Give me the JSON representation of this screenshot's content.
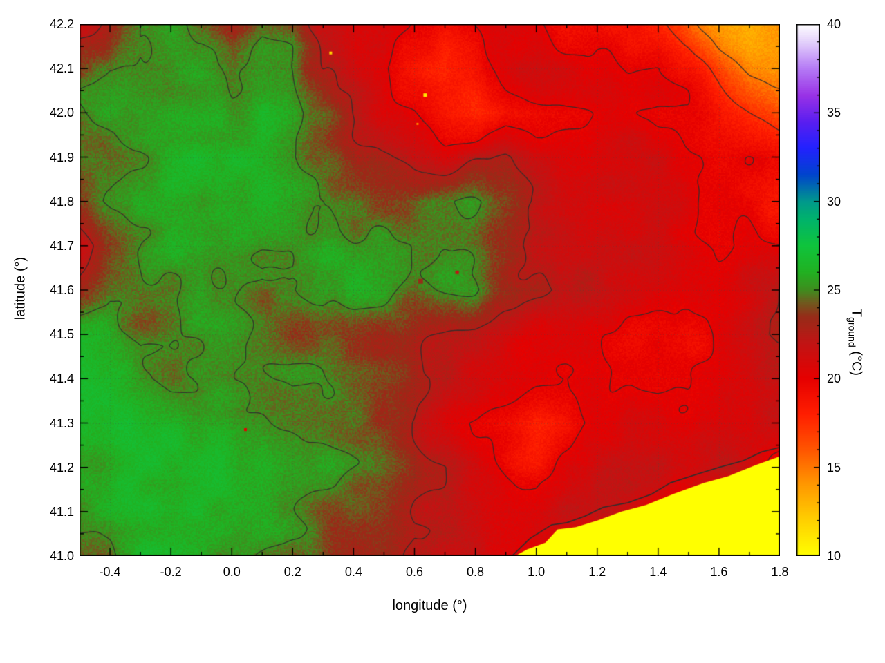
{
  "axes": {
    "xlabel": "longitude (°)",
    "ylabel": "latitude (°)",
    "x_ticks": {
      "values": [
        -0.4,
        -0.2,
        0.0,
        0.2,
        0.4,
        0.6,
        0.8,
        1.0,
        1.2,
        1.4,
        1.6,
        1.8
      ],
      "labels": [
        "-0.4",
        "-0.2",
        "0.0",
        "0.2",
        "0.4",
        "0.6",
        "0.8",
        "1.0",
        "1.2",
        "1.4",
        "1.6",
        "1.8"
      ]
    },
    "y_ticks": {
      "values": [
        41.0,
        41.1,
        41.2,
        41.3,
        41.4,
        41.5,
        41.6,
        41.7,
        41.8,
        41.9,
        42.0,
        42.1,
        42.2
      ],
      "labels": [
        "41.0",
        "41.1",
        "41.2",
        "41.3",
        "41.4",
        "41.5",
        "41.6",
        "41.7",
        "41.8",
        "41.9",
        "42.0",
        "42.1",
        "42.2"
      ]
    }
  },
  "colorbar": {
    "label_prefix": "T",
    "label_sub": "ground",
    "label_suffix": " (°C)",
    "min": 10,
    "max": 40,
    "tick_values": [
      10,
      15,
      20,
      25,
      30,
      35,
      40
    ],
    "tick_labels": [
      "10",
      "15",
      "20",
      "25",
      "30",
      "35",
      "40"
    ]
  },
  "style": {
    "contour_color": "#2e2e2e",
    "grid_color": "rgba(70,70,70,0.35)",
    "sea_color": "#ffff00",
    "frame_color": "#000000",
    "background": "#ffffff"
  },
  "chart_data": {
    "type": "heatmap",
    "field": "ground temperature",
    "xlabel": "longitude (°)",
    "ylabel": "latitude (°)",
    "zlabel": "T_ground (°C)",
    "xlim": [
      -0.5,
      1.8
    ],
    "ylim": [
      41.0,
      42.2
    ],
    "zlim": [
      10,
      40
    ],
    "legend_position": "right colorbar",
    "grid": "dotted at major ticks",
    "lon": [
      -0.5,
      -0.4,
      -0.3,
      -0.2,
      -0.1,
      0.0,
      0.1,
      0.2,
      0.3,
      0.4,
      0.5,
      0.6,
      0.7,
      0.8,
      0.9,
      1.0,
      1.1,
      1.2,
      1.3,
      1.4,
      1.5,
      1.6,
      1.7,
      1.8
    ],
    "lat_north_to_south": [
      42.2,
      42.1,
      42.0,
      41.9,
      41.8,
      41.7,
      41.6,
      41.5,
      41.4,
      41.3,
      41.2,
      41.1,
      41.0
    ],
    "temperature_grid": [
      [
        22.5,
        23.5,
        25,
        25.2,
        24,
        22.5,
        24.5,
        24,
        21,
        20.5,
        21,
        19.5,
        19,
        20,
        21,
        20.2,
        19.5,
        20,
        19,
        18.5,
        16.5,
        14.5,
        13,
        13.5
      ],
      [
        24,
        25,
        25.3,
        25.2,
        25,
        24.2,
        25,
        24.5,
        22,
        21,
        20,
        18.8,
        17.2,
        18.8,
        20,
        21,
        20.5,
        20,
        19.5,
        19.8,
        18.8,
        16.5,
        14.5,
        13.8
      ],
      [
        25,
        26,
        26,
        26,
        25.2,
        25,
        26,
        25.2,
        24,
        22,
        20.5,
        19.5,
        17.8,
        16.8,
        18.5,
        18.8,
        19.5,
        20,
        20,
        19.5,
        19.8,
        18.8,
        17.2,
        15.8
      ],
      [
        25,
        24.6,
        25,
        26,
        26,
        26,
        25.2,
        25,
        24.2,
        23,
        22,
        21,
        20.6,
        21.8,
        22.6,
        21,
        20.6,
        21,
        21,
        21,
        20.6,
        20,
        19.6,
        18.8
      ],
      [
        24,
        25,
        26,
        25.6,
        24.6,
        25.6,
        26,
        26,
        25.6,
        25,
        24.6,
        24.6,
        25,
        25,
        24,
        22.6,
        21.6,
        21,
        21,
        21,
        20.6,
        20,
        19.6,
        19
      ],
      [
        21.8,
        24,
        25,
        26,
        26,
        26,
        25.6,
        25.6,
        26,
        25.6,
        25.6,
        25,
        24.6,
        24,
        23.6,
        22,
        21.6,
        21.6,
        21,
        21,
        20.6,
        20,
        20,
        19.6
      ],
      [
        24,
        25,
        24.6,
        25,
        26,
        25.6,
        24.6,
        25,
        26,
        26,
        25.6,
        24.2,
        24.6,
        25,
        24,
        23,
        22,
        21.6,
        21,
        20.6,
        20.6,
        20.6,
        21,
        22
      ],
      [
        26,
        26,
        25,
        25,
        25,
        25,
        24.6,
        24,
        25,
        24.6,
        24,
        23.6,
        23,
        22.6,
        21.6,
        20.6,
        20,
        19.6,
        19.6,
        20,
        19.6,
        20.6,
        21.6,
        23
      ],
      [
        26,
        26,
        25,
        24.6,
        25,
        25,
        25,
        25.6,
        25,
        24,
        23.6,
        23,
        22.6,
        21.6,
        20.6,
        20,
        19.6,
        20,
        19.6,
        19.6,
        20,
        20.6,
        21,
        21.6
      ],
      [
        26,
        26,
        26,
        26,
        26,
        26,
        25.6,
        25,
        24.6,
        24,
        23,
        22,
        21,
        20,
        19,
        17.6,
        18,
        19.6,
        21,
        21,
        20.6,
        21,
        21,
        21
      ],
      [
        26,
        26,
        26,
        26,
        26,
        26,
        26,
        25.6,
        25,
        24,
        23.6,
        22.6,
        22,
        21,
        20,
        19,
        20,
        21,
        21.6,
        21.6,
        21,
        21.6,
        22,
        20
      ],
      [
        26,
        26,
        25.6,
        26,
        26,
        26,
        25,
        25,
        24,
        23.6,
        23,
        22,
        21.6,
        21,
        21,
        21,
        21.6,
        22,
        21.6,
        20,
        19.5,
        19,
        19,
        19
      ],
      [
        25,
        25,
        26,
        26,
        26,
        25,
        25,
        24,
        24,
        23,
        23,
        22,
        22,
        21.6,
        21,
        20.5,
        20,
        19.5,
        19.5,
        19,
        19,
        19,
        19,
        19
      ]
    ],
    "contour_levels": [
      15,
      17.5,
      20,
      22.5,
      25
    ],
    "palette_stops": [
      [
        10,
        "#ffff00"
      ],
      [
        12,
        "#ffd000"
      ],
      [
        14,
        "#ff9800"
      ],
      [
        16,
        "#ff5500"
      ],
      [
        18,
        "#ff1e00"
      ],
      [
        20,
        "#e60000"
      ],
      [
        22,
        "#c11414"
      ],
      [
        23.5,
        "#962c18"
      ],
      [
        24.3,
        "#6f5a1e"
      ],
      [
        25,
        "#3f8c1e"
      ],
      [
        26,
        "#21b121"
      ],
      [
        27.5,
        "#0fc43c"
      ],
      [
        29,
        "#00b36b"
      ],
      [
        30,
        "#00998c"
      ],
      [
        31.5,
        "#0044cc"
      ],
      [
        33,
        "#2222ff"
      ],
      [
        34.5,
        "#5a1ef0"
      ],
      [
        36,
        "#9932e6"
      ],
      [
        37.5,
        "#b57af5"
      ],
      [
        39,
        "#e3d0fb"
      ],
      [
        40,
        "#ffffff"
      ]
    ],
    "sea_polygon": [
      [
        0.93,
        41.0
      ],
      [
        0.97,
        41.015
      ],
      [
        1.03,
        41.03
      ],
      [
        1.07,
        41.06
      ],
      [
        1.13,
        41.065
      ],
      [
        1.2,
        41.08
      ],
      [
        1.28,
        41.1
      ],
      [
        1.36,
        41.115
      ],
      [
        1.45,
        41.14
      ],
      [
        1.55,
        41.165
      ],
      [
        1.63,
        41.18
      ],
      [
        1.72,
        41.205
      ],
      [
        1.8,
        41.225
      ],
      [
        1.8,
        41.0
      ]
    ],
    "coast_contour_line": [
      [
        0.92,
        41.0
      ],
      [
        0.98,
        41.04
      ],
      [
        1.05,
        41.07
      ],
      [
        1.1,
        41.075
      ],
      [
        1.16,
        41.09
      ],
      [
        1.22,
        41.11
      ],
      [
        1.3,
        41.12
      ],
      [
        1.38,
        41.14
      ],
      [
        1.44,
        41.165
      ],
      [
        1.53,
        41.185
      ],
      [
        1.6,
        41.2
      ],
      [
        1.68,
        41.215
      ],
      [
        1.74,
        41.235
      ],
      [
        1.8,
        41.245
      ]
    ],
    "anomaly_points": [
      [
        0.325,
        42.135,
        12,
        4
      ],
      [
        0.635,
        42.04,
        11,
        5
      ],
      [
        0.61,
        41.975,
        14.5,
        3
      ],
      [
        0.595,
        41.9,
        21,
        4
      ],
      [
        0.045,
        41.285,
        20,
        4
      ],
      [
        0.74,
        41.64,
        22,
        5
      ],
      [
        0.62,
        41.62,
        23.5,
        7
      ]
    ]
  }
}
